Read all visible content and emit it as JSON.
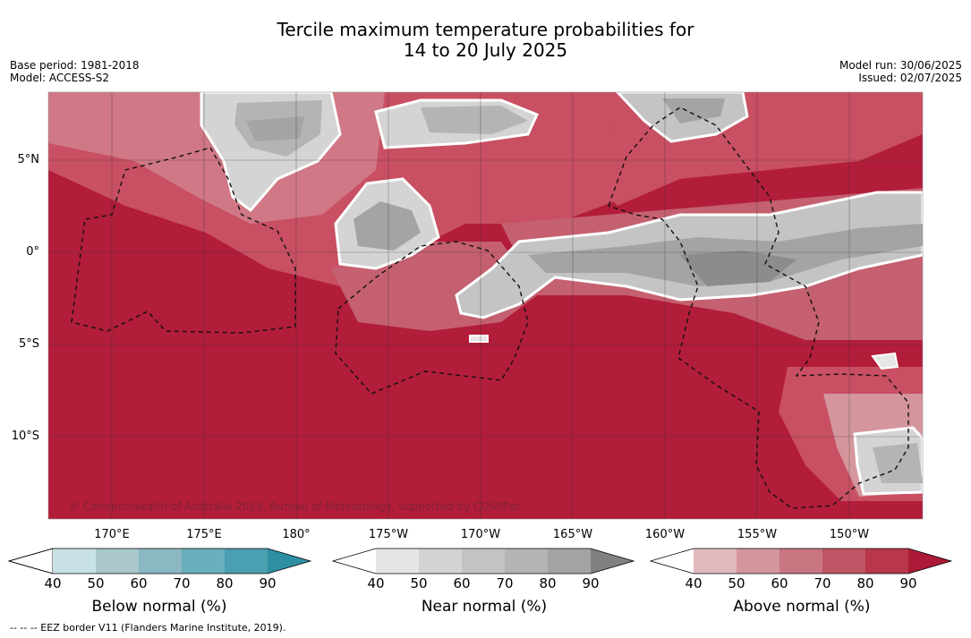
{
  "header": {
    "title_line1": "Tercile maximum temperature probabilities for",
    "title_line2": "14 to 20 July 2025",
    "base_period": "Base period: 1981-2018",
    "model": "Model: ACCESS-S2",
    "model_run": "Model run: 30/06/2025",
    "issued": "Issued: 02/07/2025"
  },
  "map": {
    "lat_labels": [
      "5°N",
      "0°",
      "5°S",
      "10°S"
    ],
    "lon_labels": [
      "170°E",
      "175°E",
      "180°",
      "175°W",
      "170°W",
      "165°W",
      "160°W",
      "155°W",
      "150°W"
    ],
    "copyright": "© Commonwealth of Australia 2025, Bureau of Meteorology, supported by COSPPac",
    "background_color": "#b21d3a"
  },
  "colorbars": [
    {
      "title": "Below normal (%)",
      "ticks": [
        "40",
        "50",
        "60",
        "70",
        "80",
        "90"
      ],
      "colors": [
        "#ffffff",
        "#c8e1e7",
        "#a9c7cd",
        "#8ab8c3",
        "#6baebc",
        "#4a9fb0",
        "#2e8fa3"
      ]
    },
    {
      "title": "Near normal (%)",
      "ticks": [
        "40",
        "50",
        "60",
        "70",
        "80",
        "90"
      ],
      "colors": [
        "#ffffff",
        "#e6e6e6",
        "#d4d4d4",
        "#c4c4c4",
        "#b4b4b4",
        "#a4a4a4",
        "#808080"
      ]
    },
    {
      "title": "Above normal (%)",
      "ticks": [
        "40",
        "50",
        "60",
        "70",
        "80",
        "90"
      ],
      "colors": [
        "#ffffff",
        "#e0b9bd",
        "#d4969c",
        "#c97680",
        "#bf5565",
        "#b8374c",
        "#ad1a37"
      ]
    }
  ],
  "footnote": "--  --  -- EEZ border V11 (Flanders Marine Institute, 2019)."
}
